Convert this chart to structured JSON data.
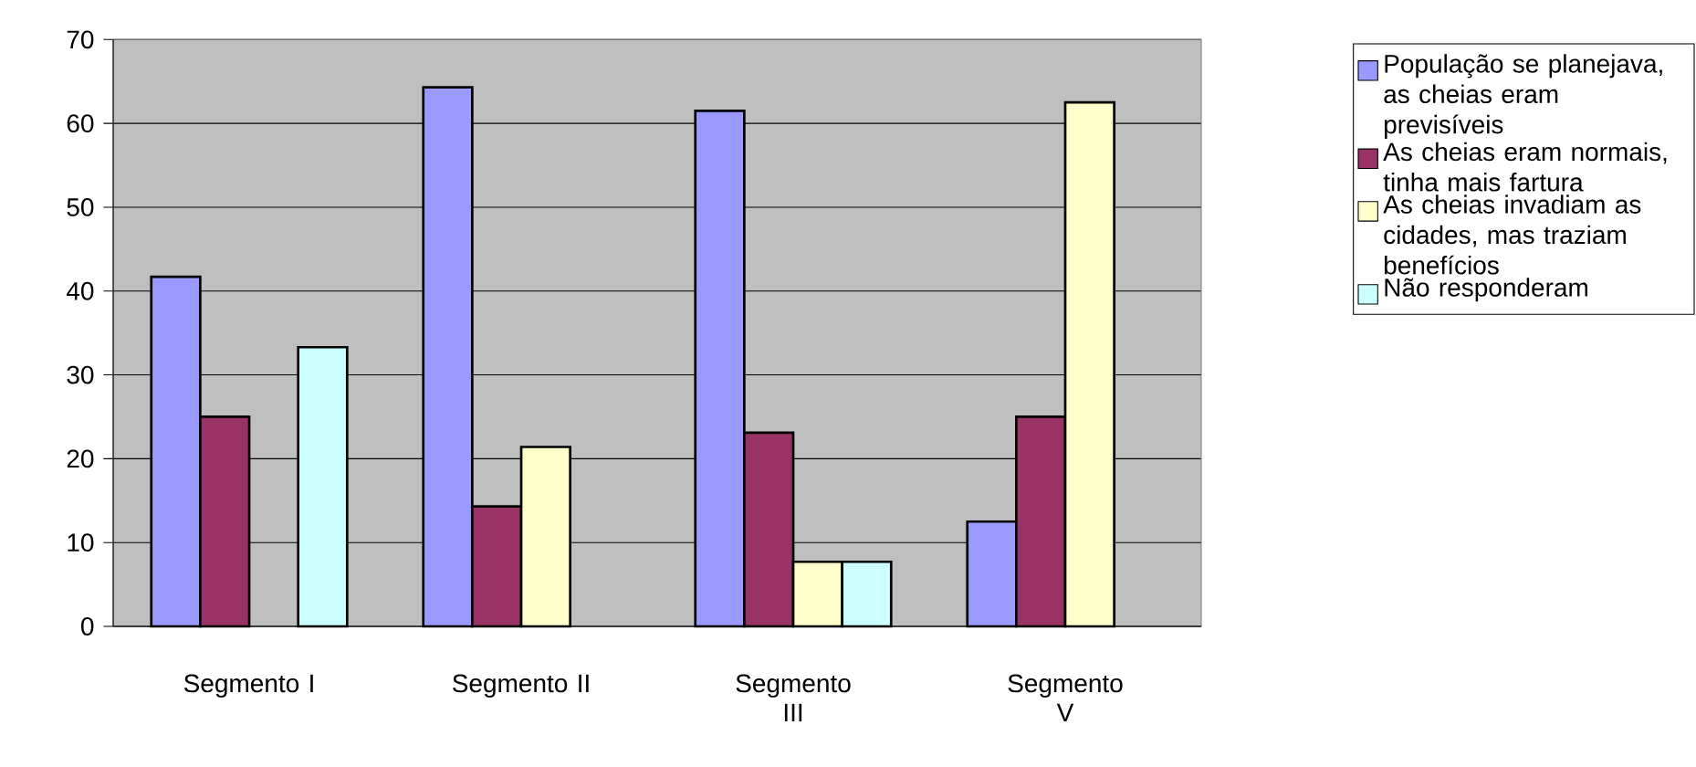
{
  "chart_data": {
    "type": "bar",
    "categories": [
      "Segmento I",
      "Segmento II",
      "Segmento III",
      "Segmento V"
    ],
    "series": [
      {
        "name": "População se planejava, as cheias eram previsíveis",
        "color": "#9999ff",
        "values": [
          41.7,
          64.3,
          61.5,
          12.5
        ]
      },
      {
        "name": "As cheias eram normais, tinha mais fartura",
        "color": "#993366",
        "values": [
          25.0,
          14.3,
          23.1,
          25.0
        ]
      },
      {
        "name": "As cheias invadiam as cidades, mas traziam benefícios",
        "color": "#ffffcc",
        "values": [
          null,
          21.4,
          7.7,
          62.5
        ]
      },
      {
        "name": "Não responderam",
        "color": "#ccffff",
        "values": [
          33.3,
          null,
          7.7,
          null
        ]
      }
    ],
    "ylim": [
      0,
      70
    ],
    "yticks": [
      0,
      10,
      20,
      30,
      40,
      50,
      60,
      70
    ],
    "grid": "y",
    "legend": "right"
  }
}
